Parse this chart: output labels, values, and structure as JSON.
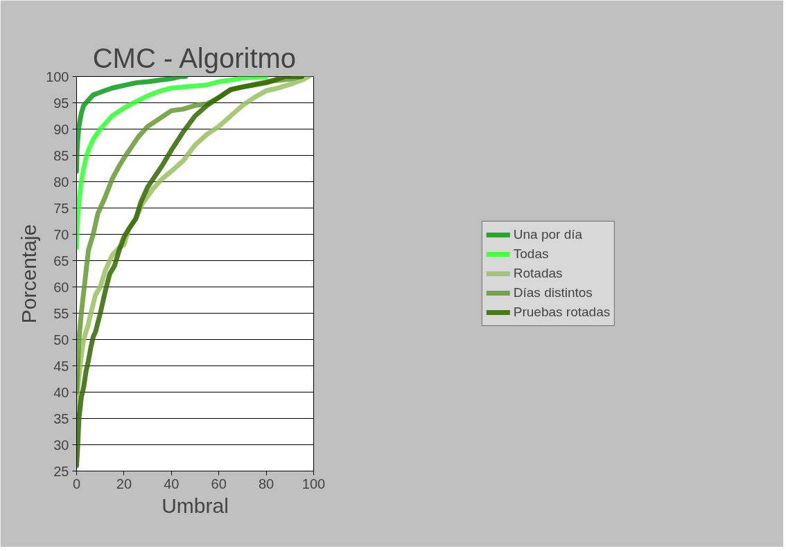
{
  "chart_data": {
    "type": "line",
    "title": "CMC - Algoritmo",
    "xlabel": "Umbral",
    "ylabel": "Porcentaje",
    "xlim": [
      0,
      100
    ],
    "xticks": [
      0,
      20,
      40,
      60,
      80,
      100
    ],
    "ylim": [
      25,
      100
    ],
    "yticks": [
      25,
      30,
      35,
      40,
      45,
      50,
      55,
      60,
      65,
      70,
      75,
      80,
      85,
      90,
      95,
      100
    ],
    "grid": "y",
    "legend": "right",
    "marker": "none",
    "line_style": "solid",
    "series": [
      {
        "name": "Una por día",
        "color": "#0a9a1a",
        "x": [
          0,
          0.2,
          0.5,
          1,
          2,
          3,
          5,
          7,
          10,
          15,
          20,
          25,
          30,
          35,
          40,
          44,
          46
        ],
        "values": [
          82,
          86,
          88,
          90.5,
          93,
          94.5,
          95.5,
          96.5,
          97,
          97.8,
          98.3,
          98.8,
          99,
          99.3,
          99.6,
          100,
          100
        ]
      },
      {
        "name": "Todas",
        "color": "#33ff33",
        "x": [
          0,
          0.3,
          1,
          2,
          3,
          4,
          5,
          7,
          10,
          15,
          20,
          25,
          30,
          35,
          40,
          50,
          55,
          60,
          65,
          70,
          80
        ],
        "values": [
          67.5,
          72,
          76,
          80,
          82.5,
          84.5,
          86,
          88,
          90,
          92.5,
          94,
          95.2,
          96.3,
          97.2,
          97.8,
          98.2,
          98.4,
          99,
          99.3,
          99.7,
          100
        ]
      },
      {
        "name": "Rotadas",
        "color": "#99c060",
        "x": [
          0,
          0.3,
          1,
          2,
          3,
          5,
          6,
          8,
          10,
          12,
          15,
          18,
          20,
          22,
          25,
          28,
          32,
          36,
          40,
          45,
          50,
          55,
          60,
          65,
          70,
          75,
          80,
          85,
          90,
          95,
          98
        ],
        "values": [
          35,
          40,
          43,
          47,
          50,
          53,
          55,
          58.5,
          60,
          63,
          66,
          67.5,
          68,
          71,
          73,
          76,
          78.5,
          80.5,
          82,
          84,
          87,
          89,
          90.5,
          92.5,
          94.5,
          96,
          97.3,
          97.8,
          98.5,
          99.3,
          100
        ]
      },
      {
        "name": "Días distintos",
        "color": "#669933",
        "x": [
          0,
          0.5,
          1,
          2,
          3,
          4,
          5,
          7,
          9,
          12,
          15,
          18,
          20,
          23,
          26,
          30,
          35,
          40,
          45,
          50,
          55,
          60,
          65,
          70,
          80,
          90,
          95
        ],
        "values": [
          40,
          45,
          50,
          55,
          59,
          63,
          67,
          70,
          74,
          77,
          80.5,
          83,
          84.5,
          86.5,
          88.5,
          90.5,
          92,
          93.5,
          93.8,
          94.5,
          94.8,
          96,
          97.5,
          98,
          99,
          99.5,
          100
        ]
      },
      {
        "name": "Pruebas rotadas",
        "color": "#336600",
        "x": [
          0,
          0.5,
          1,
          2,
          3,
          4,
          5,
          6,
          7,
          8,
          10,
          12,
          14,
          16,
          18,
          20,
          22,
          25,
          27,
          30,
          33,
          36,
          40,
          45,
          50,
          55,
          60,
          65,
          70,
          80,
          88,
          95
        ],
        "values": [
          26,
          30,
          35,
          39,
          41,
          44,
          46,
          48.5,
          50.5,
          51.5,
          55,
          59,
          62.5,
          64,
          67,
          69.5,
          71,
          73,
          76,
          79,
          81,
          83,
          86,
          89.5,
          92.5,
          94.5,
          96,
          97.5,
          98,
          98.8,
          100,
          100
        ]
      }
    ]
  }
}
